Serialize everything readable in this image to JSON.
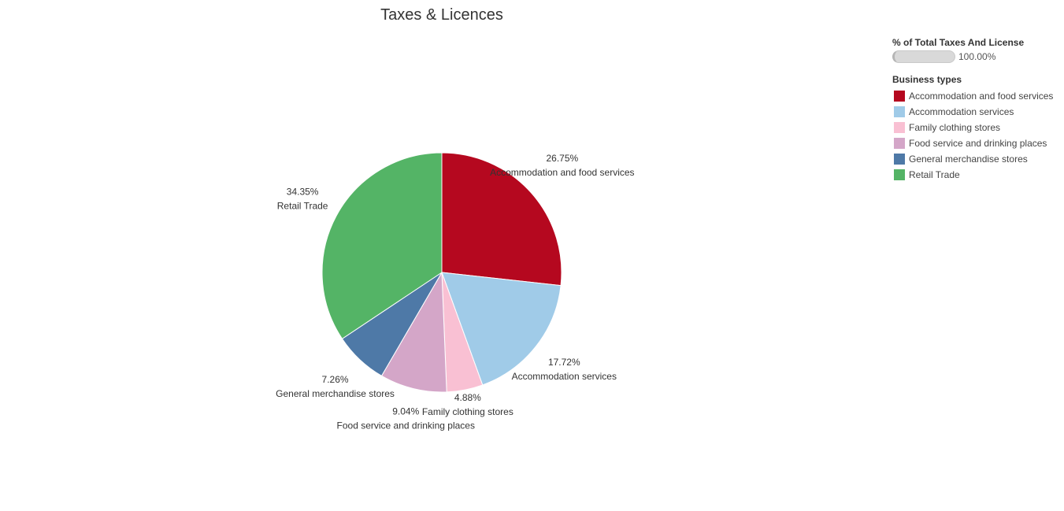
{
  "chart_data": {
    "type": "pie",
    "title": "Taxes & Licences",
    "categories": [
      "Accommodation and food services",
      "Accommodation services",
      "Family clothing stores",
      "Food service and drinking places",
      "General merchandise stores",
      "Retail Trade"
    ],
    "values": [
      26.75,
      17.72,
      4.88,
      9.04,
      7.26,
      34.35
    ],
    "value_labels": [
      "26.75%",
      "17.72%",
      "4.88%",
      "9.04%",
      "7.26%",
      "34.35%"
    ],
    "colors": [
      "#b5081f",
      "#a0cbe8",
      "#f9c0d3",
      "#d4a6c8",
      "#4e79a7",
      "#54b466"
    ],
    "legend_position": "right"
  },
  "legend": {
    "size_title": "% of Total Taxes And License",
    "size_value": "100.00%",
    "color_title": "Business types"
  }
}
